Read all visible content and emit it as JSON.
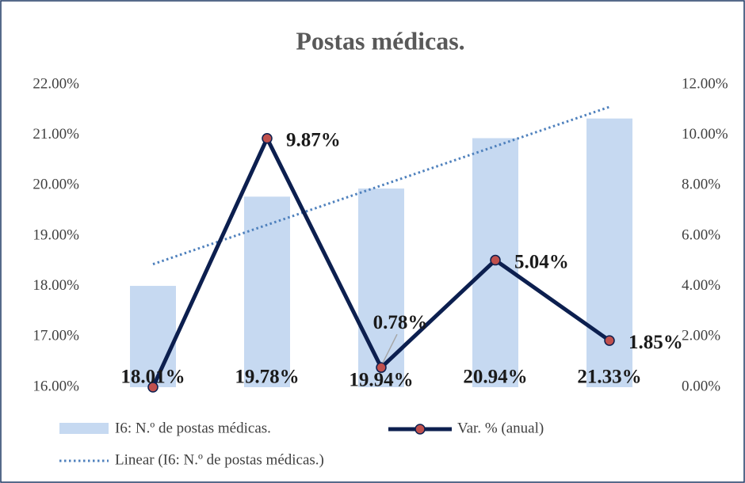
{
  "chart_data": {
    "type": "bar-line",
    "title": "Postas médicas.",
    "series": [
      {
        "name": "I6: N.º de postas médicas.",
        "type": "bar",
        "color": "#c6d9f1",
        "values": [
          18.01,
          19.78,
          19.94,
          20.94,
          21.33
        ],
        "value_labels": [
          "18.01%",
          "19.78%",
          "19.94%",
          "20.94%",
          "21.33%"
        ]
      },
      {
        "name": "Var. % (anual)",
        "type": "line",
        "axis": "y2",
        "color": "#0c1f4f",
        "marker_color": "#c0504d",
        "values": [
          0,
          9.87,
          0.78,
          5.04,
          1.85
        ],
        "value_labels": [
          null,
          "9.87%",
          "0.78%",
          "5.04%",
          "1.85%"
        ]
      }
    ],
    "trendline": {
      "name": "Linear (I6: N.º de postas médicas.)",
      "of_series": 0,
      "kind": "linear",
      "color": "#4f81bd",
      "style": "dotted"
    },
    "ylim": [
      16,
      22
    ],
    "yticks": [
      {
        "value": 16,
        "label": "16.00%"
      },
      {
        "value": 17,
        "label": "17.00%"
      },
      {
        "value": 18,
        "label": "18.00%"
      },
      {
        "value": 19,
        "label": "19.00%"
      },
      {
        "value": 20,
        "label": "20.00%"
      },
      {
        "value": 21,
        "label": "21.00%"
      },
      {
        "value": 22,
        "label": "22.00%"
      }
    ],
    "y2lim": [
      0,
      12
    ],
    "y2ticks": [
      {
        "value": 0,
        "label": "0.00%"
      },
      {
        "value": 2,
        "label": "2.00%"
      },
      {
        "value": 4,
        "label": "4.00%"
      },
      {
        "value": 6,
        "label": "6.00%"
      },
      {
        "value": 8,
        "label": "8.00%"
      },
      {
        "value": 10,
        "label": "10.00%"
      },
      {
        "value": 12,
        "label": "12.00%"
      }
    ],
    "grid": false
  }
}
